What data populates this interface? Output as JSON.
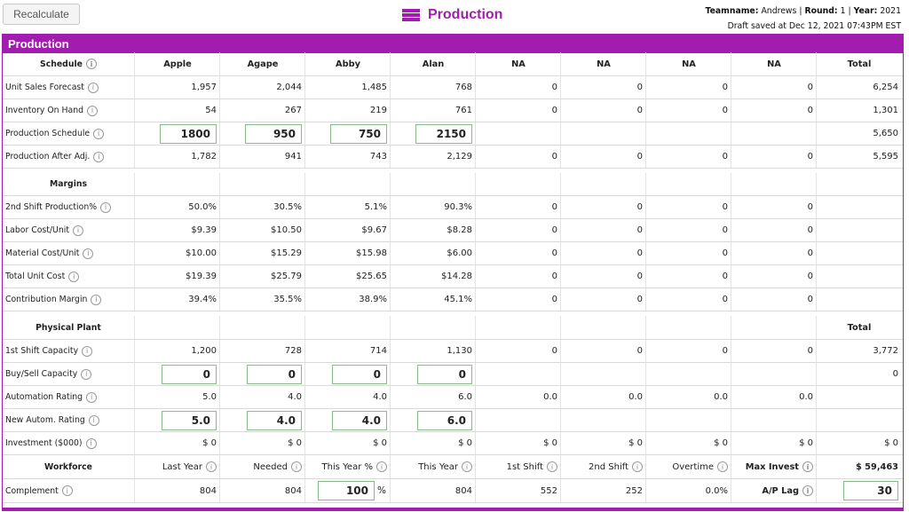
{
  "header": {
    "recalculate_label": "Recalculate",
    "title": "Production",
    "team_label": "Teamname:",
    "team_value": "Andrews",
    "round_label": "Round:",
    "round_value": "1",
    "year_label": "Year:",
    "year_value": "2021",
    "draft_saved": "Draft saved at Dec 12, 2021 07:43PM EST",
    "sep": "|"
  },
  "panel": {
    "title": "Production"
  },
  "columns": [
    "Apple",
    "Agape",
    "Abby",
    "Alan",
    "NA",
    "NA",
    "NA",
    "NA",
    "Total"
  ],
  "schedule": {
    "label": "Schedule",
    "rows": [
      {
        "label": "Unit Sales Forecast",
        "values": [
          "1,957",
          "2,044",
          "1,485",
          "768",
          "0",
          "0",
          "0",
          "0",
          "6,254"
        ]
      },
      {
        "label": "Inventory On Hand",
        "values": [
          "54",
          "267",
          "219",
          "761",
          "0",
          "0",
          "0",
          "0",
          "1,301"
        ]
      },
      {
        "label": "Production Schedule",
        "inputs": [
          "1800",
          "950",
          "750",
          "2150"
        ],
        "values": [
          "",
          "",
          "",
          "",
          "",
          "",
          "",
          "",
          "5,650"
        ]
      },
      {
        "label": "Production After Adj.",
        "values": [
          "1,782",
          "941",
          "743",
          "2,129",
          "0",
          "0",
          "0",
          "0",
          "5,595"
        ]
      }
    ]
  },
  "margins": {
    "label": "Margins",
    "rows": [
      {
        "label": "2nd Shift Production%",
        "values": [
          "50.0%",
          "30.5%",
          "5.1%",
          "90.3%",
          "0",
          "0",
          "0",
          "0",
          ""
        ]
      },
      {
        "label": "Labor Cost/Unit",
        "values": [
          "$9.39",
          "$10.50",
          "$9.67",
          "$8.28",
          "0",
          "0",
          "0",
          "0",
          ""
        ]
      },
      {
        "label": "Material Cost/Unit",
        "values": [
          "$10.00",
          "$15.29",
          "$15.98",
          "$6.00",
          "0",
          "0",
          "0",
          "0",
          ""
        ]
      },
      {
        "label": "Total Unit Cost",
        "values": [
          "$19.39",
          "$25.79",
          "$25.65",
          "$14.28",
          "0",
          "0",
          "0",
          "0",
          ""
        ]
      },
      {
        "label": "Contribution Margin",
        "values": [
          "39.4%",
          "35.5%",
          "38.9%",
          "45.1%",
          "0",
          "0",
          "0",
          "0",
          ""
        ]
      }
    ]
  },
  "plant": {
    "label": "Physical Plant",
    "total_label": "Total",
    "rows": [
      {
        "label": "1st Shift Capacity",
        "values": [
          "1,200",
          "728",
          "714",
          "1,130",
          "0",
          "0",
          "0",
          "0",
          "3,772"
        ]
      },
      {
        "label": "Buy/Sell Capacity",
        "inputs": [
          "0",
          "0",
          "0",
          "0"
        ],
        "values": [
          "",
          "",
          "",
          "",
          "",
          "",
          "",
          "",
          "0"
        ]
      },
      {
        "label": "Automation Rating",
        "values": [
          "5.0",
          "4.0",
          "4.0",
          "6.0",
          "0.0",
          "0.0",
          "0.0",
          "0.0",
          ""
        ]
      },
      {
        "label": "New Autom. Rating",
        "inputs": [
          "5.0",
          "4.0",
          "4.0",
          "6.0"
        ],
        "values": [
          "",
          "",
          "",
          "",
          "",
          "",
          "",
          "",
          ""
        ]
      },
      {
        "label": "Investment ($000)",
        "values": [
          "$ 0",
          "$ 0",
          "$ 0",
          "$ 0",
          "$ 0",
          "$ 0",
          "$ 0",
          "$ 0",
          "$ 0"
        ]
      }
    ]
  },
  "workforce": {
    "label": "Workforce",
    "headers": [
      "Last Year",
      "Needed",
      "This Year %",
      "This Year",
      "1st Shift",
      "2nd Shift",
      "Overtime",
      "Max Invest"
    ],
    "max_invest_value": "$ 59,463",
    "complement_label": "Complement",
    "complement_values": [
      "804",
      "804"
    ],
    "this_year_pct_input": "100",
    "pct_symbol": "%",
    "complement_this_year": "804",
    "first_shift": "552",
    "second_shift": "252",
    "overtime": "0.0%",
    "ap_lag_label": "A/P Lag",
    "ap_lag_input": "30"
  },
  "icons": {
    "info": "info-icon",
    "title_icon": "stack-icon"
  },
  "colors": {
    "accent": "#a21caf",
    "input_border": "#8ab98a"
  }
}
